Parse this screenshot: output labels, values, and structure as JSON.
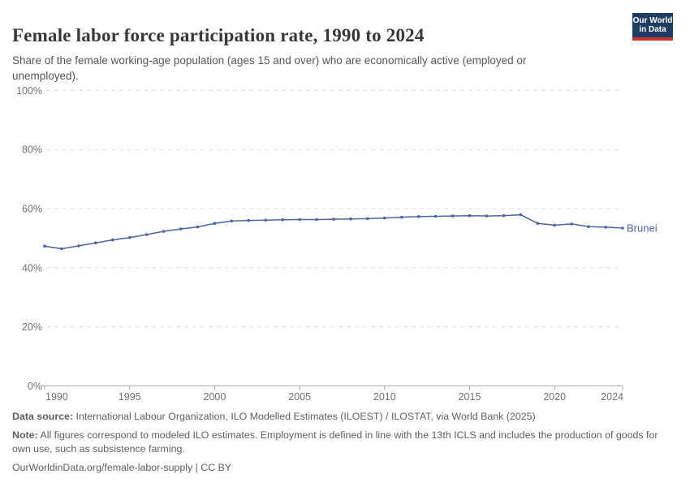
{
  "header": {
    "title": "Female labor force participation rate, 1990 to 2024",
    "subtitle": "Share of the female working-age population (ages 15 and over) who are economically active (employed or unemployed).",
    "logo": {
      "line1": "Our World",
      "line2": "in Data",
      "bg_color": "#1d3d63",
      "accent_color": "#cb342c"
    }
  },
  "chart_data": {
    "type": "line",
    "title": "Female labor force participation rate, 1990 to 2024",
    "xlabel": "",
    "ylabel": "",
    "x": [
      1990,
      1991,
      1992,
      1993,
      1994,
      1995,
      1996,
      1997,
      1998,
      1999,
      2000,
      2001,
      2002,
      2003,
      2004,
      2005,
      2006,
      2007,
      2008,
      2009,
      2010,
      2011,
      2012,
      2013,
      2014,
      2015,
      2016,
      2017,
      2018,
      2019,
      2020,
      2021,
      2022,
      2023,
      2024
    ],
    "series": [
      {
        "name": "Brunei",
        "color": "#4a65a0",
        "values": [
          47.3,
          46.4,
          47.4,
          48.4,
          49.4,
          50.2,
          51.2,
          52.3,
          53.1,
          53.8,
          55.0,
          55.8,
          56.0,
          56.1,
          56.2,
          56.3,
          56.3,
          56.4,
          56.5,
          56.6,
          56.8,
          57.1,
          57.3,
          57.4,
          57.5,
          57.6,
          57.5,
          57.6,
          57.9,
          55.0,
          54.4,
          54.8,
          53.9,
          53.7,
          53.4
        ]
      }
    ],
    "xlim": [
      1990,
      2024
    ],
    "ylim": [
      0,
      100
    ],
    "x_ticks": [
      1990,
      1995,
      2000,
      2005,
      2010,
      2015,
      2020,
      2024
    ],
    "x_tick_labels": [
      "1990",
      "1995",
      "2000",
      "2005",
      "2010",
      "2015",
      "2020",
      "2024"
    ],
    "y_ticks": [
      0,
      20,
      40,
      60,
      80,
      100
    ],
    "y_tick_labels": [
      "0%",
      "20%",
      "40%",
      "60%",
      "80%",
      "100%"
    ],
    "grid": true,
    "grid_color": "#dcdcdc",
    "axis_color": "#a5a5a5",
    "tick_label_color": "#707070",
    "legend_position": "end-of-line"
  },
  "footer": {
    "data_source_label": "Data source:",
    "data_source_text": "International Labour Organization, ILO Modelled Estimates (ILOEST) / ILOSTAT, via World Bank (2025)",
    "note_label": "Note:",
    "note_text": "All figures correspond to modeled ILO estimates. Employment is defined in line with the 13th ICLS and includes the production of goods for own use, such as subsistence farming.",
    "link_text": "OurWorldinData.org/female-labor-supply | CC BY"
  }
}
